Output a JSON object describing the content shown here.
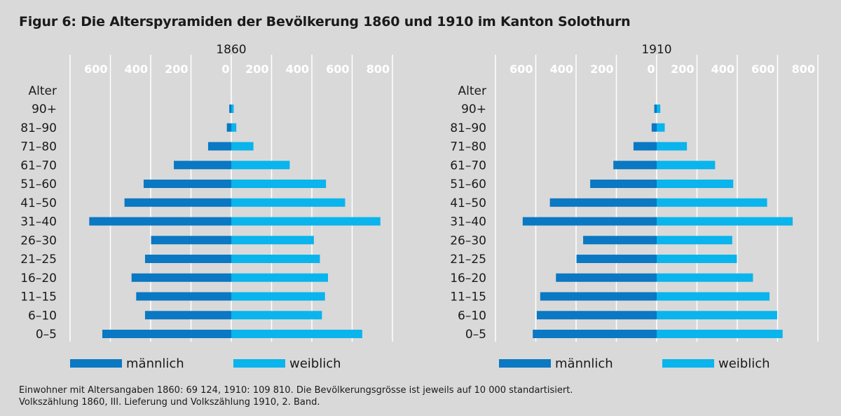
{
  "title": "Figur 6: Die Alterspyramiden der Bevölkerung 1860 und 1910 im Kanton Solothurn",
  "footer": {
    "line1": "Einwohner mit Altersangaben 1860: 69 124, 1910: 109 810. Die Bevölkerungsgrösse ist jeweils auf 10 000 standartisiert.",
    "line2": "Volkszählung 1860, III. Lieferung und Volkszählung 1910, 2. Band."
  },
  "colors": {
    "background": "#d9d9d9",
    "male": "#0a78c2",
    "female": "#0ab4ec",
    "grid": "#ffffff"
  },
  "chart_data": [
    {
      "type": "bar",
      "orientation": "horizontal-pyramid",
      "title": "1860",
      "ylabel": "Alter",
      "categories": [
        "90+",
        "81–90",
        "71–80",
        "61–70",
        "51–60",
        "41–50",
        "31–40",
        "26–30",
        "21–25",
        "16–20",
        "11–15",
        "6–10",
        "0–5"
      ],
      "series": [
        {
          "name": "männlich",
          "values": [
            10,
            22,
            115,
            285,
            435,
            530,
            705,
            398,
            428,
            495,
            472,
            428,
            640
          ]
        },
        {
          "name": "weiblich",
          "values": [
            12,
            25,
            110,
            290,
            470,
            565,
            740,
            410,
            440,
            480,
            465,
            450,
            650
          ]
        }
      ],
      "ticks_left": [
        "600",
        "400",
        "200",
        "0"
      ],
      "ticks_right": [
        "200",
        "400",
        "600",
        "800"
      ],
      "xlim_left": [
        0,
        800
      ],
      "xlim_right": [
        0,
        800
      ],
      "legend": {
        "male": "männlich",
        "female": "weiblich",
        "position": "bottom"
      }
    },
    {
      "type": "bar",
      "orientation": "horizontal-pyramid",
      "title": "1910",
      "ylabel": "Alter",
      "categories": [
        "90+",
        "81–90",
        "71–80",
        "61–70",
        "51–60",
        "41–50",
        "31–40",
        "26–30",
        "21–25",
        "16–20",
        "11–15",
        "6–10",
        "0–5"
      ],
      "series": [
        {
          "name": "männlich",
          "values": [
            12,
            25,
            115,
            215,
            330,
            530,
            665,
            365,
            398,
            500,
            578,
            595,
            615
          ]
        },
        {
          "name": "weiblich",
          "values": [
            18,
            40,
            150,
            290,
            380,
            548,
            675,
            375,
            398,
            478,
            560,
            598,
            625
          ]
        }
      ],
      "ticks_left": [
        "600",
        "400",
        "200",
        "0"
      ],
      "ticks_right": [
        "200",
        "400",
        "600",
        "800"
      ],
      "xlim_left": [
        0,
        800
      ],
      "xlim_right": [
        0,
        800
      ],
      "legend": {
        "male": "männlich",
        "female": "weiblich",
        "position": "bottom"
      }
    }
  ]
}
